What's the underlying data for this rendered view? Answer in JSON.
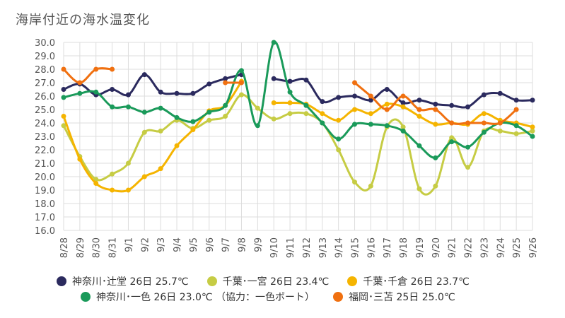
{
  "title": "海岸付近の海水温変化",
  "chart_data": {
    "type": "line",
    "title": "海岸付近の海水温変化",
    "categories": [
      "8/28",
      "8/29",
      "8/30",
      "8/31",
      "9/1",
      "9/2",
      "9/3",
      "9/4",
      "9/5",
      "9/6",
      "9/7",
      "9/8",
      "9/9",
      "9/10",
      "9/11",
      "9/12",
      "9/13",
      "9/14",
      "9/15",
      "9/16",
      "9/17",
      "9/18",
      "9/19",
      "9/20",
      "9/21",
      "9/22",
      "9/23",
      "9/24",
      "9/25",
      "9/26"
    ],
    "ylim": [
      16,
      30
    ],
    "yticks": [
      "16.0",
      "17.0",
      "18.0",
      "19.0",
      "20.0",
      "21.0",
      "22.0",
      "23.0",
      "24.0",
      "25.0",
      "26.0",
      "27.0",
      "28.0",
      "29.0",
      "30.0"
    ],
    "grid": true,
    "legend_position": "bottom",
    "series": [
      {
        "name": "神奈川･辻堂 26日 25.7℃",
        "color": "#2b2a5e",
        "values": [
          26.5,
          26.9,
          26.1,
          26.5,
          26.1,
          27.6,
          26.3,
          26.2,
          26.2,
          26.9,
          27.3,
          27.6,
          null,
          27.3,
          27.1,
          27.2,
          25.6,
          25.9,
          26.0,
          25.7,
          26.5,
          25.5,
          25.7,
          25.4,
          25.3,
          25.2,
          26.1,
          26.2,
          25.7,
          25.7
        ]
      },
      {
        "name": "千葉･一宮 26日 23.4℃",
        "color": "#c6cc44",
        "values": [
          23.8,
          21.5,
          19.8,
          20.2,
          21.0,
          23.3,
          23.4,
          24.2,
          23.6,
          24.2,
          24.5,
          26.1,
          25.1,
          24.3,
          24.7,
          24.7,
          24.0,
          22.0,
          19.6,
          19.3,
          23.7,
          23.7,
          19.1,
          19.3,
          22.9,
          20.7,
          23.4,
          23.4,
          23.2,
          23.4
        ]
      },
      {
        "name": "千葉･千倉 26日 23.7℃",
        "color": "#f5b400",
        "values": [
          24.5,
          21.3,
          19.5,
          19.0,
          19.0,
          20.0,
          20.6,
          22.3,
          23.5,
          24.9,
          25.3,
          27.1,
          null,
          25.5,
          25.5,
          25.4,
          24.7,
          24.2,
          25.0,
          24.7,
          25.4,
          25.2,
          24.5,
          23.9,
          24.0,
          23.9,
          24.7,
          24.2,
          24.0,
          23.7
        ]
      },
      {
        "name": "神奈川･一色 26日 23.0℃ （協力：一色ボート）",
        "color": "#1a9a5a",
        "values": [
          25.9,
          26.2,
          26.3,
          25.2,
          25.2,
          24.8,
          25.1,
          24.4,
          24.1,
          24.8,
          25.3,
          27.9,
          23.8,
          30.0,
          26.3,
          25.3,
          24.0,
          22.8,
          23.9,
          23.9,
          23.8,
          23.4,
          22.3,
          21.4,
          22.6,
          22.2,
          23.3,
          24.0,
          23.8,
          23.0
        ]
      },
      {
        "name": "福岡･三苫 25日 25.0℃",
        "color": "#f07010",
        "values": [
          28.0,
          27.0,
          28.0,
          28.0,
          null,
          null,
          null,
          null,
          null,
          null,
          27.0,
          27.0,
          null,
          null,
          null,
          null,
          null,
          null,
          27.0,
          26.0,
          25.0,
          26.0,
          25.0,
          25.0,
          24.0,
          24.0,
          24.0,
          24.0,
          25.0,
          null
        ]
      }
    ]
  }
}
